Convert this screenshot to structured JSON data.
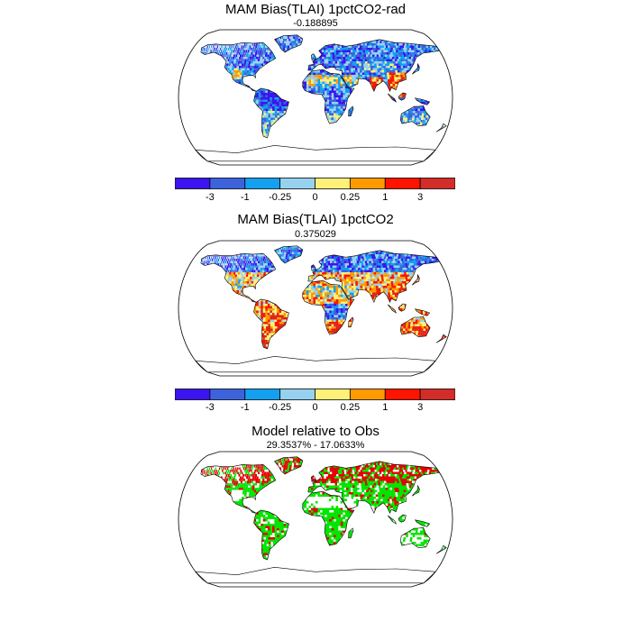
{
  "panels": [
    {
      "title": "MAM Bias(TLAI) 1pctCO2-rad",
      "subtitle": "-0.188895",
      "has_colorbar": true,
      "variant": "bias-rad"
    },
    {
      "title": "MAM Bias(TLAI) 1pctCO2",
      "subtitle": "0.375029",
      "has_colorbar": true,
      "variant": "bias"
    },
    {
      "title": "Model relative to Obs",
      "subtitle": "29.3537% - 17.0633%",
      "has_colorbar": false,
      "variant": "relative"
    }
  ],
  "colorbar": {
    "colors": [
      "#3c14f0",
      "#3d63dc",
      "#14a0f0",
      "#96d2f0",
      "#fff078",
      "#ff9b00",
      "#ff1400",
      "#d22d28"
    ],
    "labels": [
      "-3",
      "-1",
      "-0.25",
      "0",
      "0.25",
      "1",
      "3"
    ]
  },
  "relative_legend": {
    "colors": [
      "#00e600",
      "#e60000",
      "#ffffff"
    ]
  },
  "land_colors": {
    "border": "#000000",
    "ocean": "#ffffff"
  }
}
